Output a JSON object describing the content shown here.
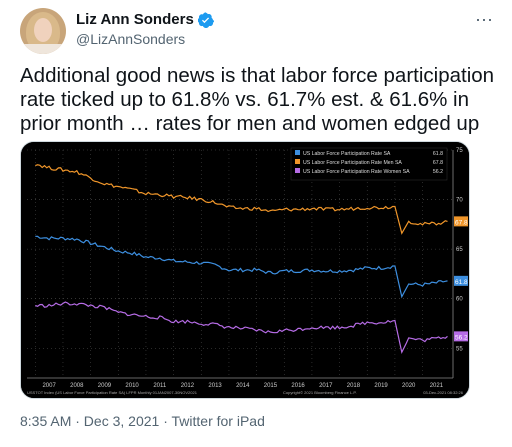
{
  "tweet": {
    "author_name": "Liz Ann Sonders",
    "handle": "@LizAnnSonders",
    "text": "Additional good news is that labor force participation rate ticked up to 61.8% vs. 61.7% est. & 61.6% in prior month … rates for men and women edged up",
    "timestamp": "8:35 AM · Dec 3, 2021",
    "source": "Twitter for iPad",
    "more_icon": "⋯"
  },
  "colors": {
    "total": "#3d8fe0",
    "men": "#f0962a",
    "women": "#b66ce6",
    "verified": "#1d9bf0"
  },
  "chart_data": {
    "type": "line",
    "x": [
      2007,
      2008,
      2009,
      2010,
      2011,
      2012,
      2013,
      2014,
      2015,
      2016,
      2017,
      2018,
      2019,
      2020,
      2021
    ],
    "x_tick_labels": [
      "2007",
      "2008",
      "2009",
      "2010",
      "2011",
      "2012",
      "2013",
      "2014",
      "2015",
      "2016",
      "2017",
      "2018",
      "2019",
      "2020",
      "2021"
    ],
    "y_tick_labels": [
      "75",
      "70",
      "65",
      "60",
      "55"
    ],
    "ylim": [
      52,
      75
    ],
    "legend_placement": "top-right",
    "series": [
      {
        "name": "US Labor Force Participation Rate SA",
        "last_label": "61.8",
        "points": [
          [
            2007.0,
            66.3
          ],
          [
            2007.5,
            66.1
          ],
          [
            2008.0,
            66.1
          ],
          [
            2008.5,
            66.0
          ],
          [
            2009.0,
            65.6
          ],
          [
            2009.5,
            65.2
          ],
          [
            2010.0,
            64.8
          ],
          [
            2010.5,
            64.6
          ],
          [
            2011.0,
            64.2
          ],
          [
            2011.5,
            64.1
          ],
          [
            2012.0,
            63.8
          ],
          [
            2012.5,
            63.7
          ],
          [
            2013.0,
            63.6
          ],
          [
            2013.5,
            63.4
          ],
          [
            2014.0,
            62.9
          ],
          [
            2014.5,
            62.9
          ],
          [
            2015.0,
            62.9
          ],
          [
            2015.5,
            62.6
          ],
          [
            2016.0,
            62.8
          ],
          [
            2016.5,
            62.8
          ],
          [
            2017.0,
            62.9
          ],
          [
            2017.5,
            62.8
          ],
          [
            2018.0,
            62.8
          ],
          [
            2018.5,
            62.9
          ],
          [
            2019.0,
            63.1
          ],
          [
            2019.5,
            63.1
          ],
          [
            2020.0,
            63.3
          ],
          [
            2020.25,
            60.2
          ],
          [
            2020.5,
            61.5
          ],
          [
            2021.0,
            61.4
          ],
          [
            2021.5,
            61.6
          ],
          [
            2021.9,
            61.8
          ]
        ]
      },
      {
        "name": "US Labor Force Participation Rate Men SA",
        "last_label": "67.8",
        "points": [
          [
            2007.0,
            73.6
          ],
          [
            2007.5,
            73.2
          ],
          [
            2008.0,
            73.0
          ],
          [
            2008.5,
            72.8
          ],
          [
            2009.0,
            72.2
          ],
          [
            2009.5,
            71.6
          ],
          [
            2010.0,
            71.3
          ],
          [
            2010.5,
            71.0
          ],
          [
            2011.0,
            70.6
          ],
          [
            2011.5,
            70.5
          ],
          [
            2012.0,
            70.3
          ],
          [
            2012.5,
            70.2
          ],
          [
            2013.0,
            70.0
          ],
          [
            2013.5,
            69.7
          ],
          [
            2014.0,
            69.2
          ],
          [
            2014.5,
            69.1
          ],
          [
            2015.0,
            69.1
          ],
          [
            2015.5,
            68.8
          ],
          [
            2016.0,
            69.0
          ],
          [
            2016.5,
            69.0
          ],
          [
            2017.0,
            69.1
          ],
          [
            2017.5,
            69.0
          ],
          [
            2018.0,
            69.0
          ],
          [
            2018.5,
            69.1
          ],
          [
            2019.0,
            69.2
          ],
          [
            2019.5,
            69.2
          ],
          [
            2020.0,
            69.3
          ],
          [
            2020.25,
            66.6
          ],
          [
            2020.5,
            67.8
          ],
          [
            2021.0,
            67.5
          ],
          [
            2021.5,
            67.6
          ],
          [
            2021.9,
            67.8
          ]
        ]
      },
      {
        "name": "US Labor Force Participation Rate Women SA",
        "last_label": "56.2",
        "points": [
          [
            2007.0,
            59.3
          ],
          [
            2007.5,
            59.3
          ],
          [
            2008.0,
            59.5
          ],
          [
            2008.5,
            59.5
          ],
          [
            2009.0,
            59.3
          ],
          [
            2009.5,
            59.1
          ],
          [
            2010.0,
            58.6
          ],
          [
            2010.5,
            58.4
          ],
          [
            2011.0,
            58.2
          ],
          [
            2011.5,
            58.1
          ],
          [
            2012.0,
            57.7
          ],
          [
            2012.5,
            57.7
          ],
          [
            2013.0,
            57.5
          ],
          [
            2013.5,
            57.4
          ],
          [
            2014.0,
            57.1
          ],
          [
            2014.5,
            57.0
          ],
          [
            2015.0,
            56.8
          ],
          [
            2015.5,
            56.6
          ],
          [
            2016.0,
            56.8
          ],
          [
            2016.5,
            56.9
          ],
          [
            2017.0,
            57.1
          ],
          [
            2017.5,
            57.1
          ],
          [
            2018.0,
            57.1
          ],
          [
            2018.5,
            57.3
          ],
          [
            2019.0,
            57.6
          ],
          [
            2019.5,
            57.6
          ],
          [
            2020.0,
            57.8
          ],
          [
            2020.25,
            54.6
          ],
          [
            2020.5,
            56.0
          ],
          [
            2021.0,
            55.8
          ],
          [
            2021.5,
            56.0
          ],
          [
            2021.9,
            56.2
          ]
        ]
      }
    ],
    "footer_left": "USSTOT Index (US Labor Force Participation Rate SA) LFPR Monthly 01JAN2007-30NOV2021",
    "footer_right": "Copyright© 2021 Bloomberg Finance L.P.",
    "footer_date": "03-Dec-2021 08:32:26"
  }
}
